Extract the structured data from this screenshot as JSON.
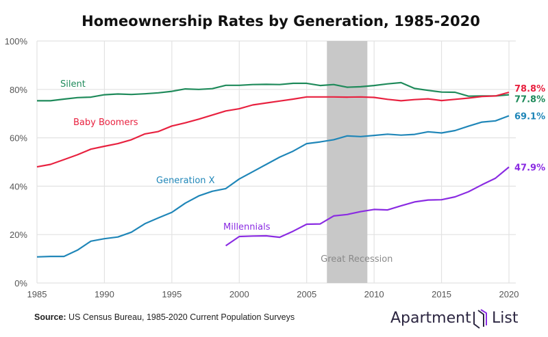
{
  "chart_data": {
    "type": "line",
    "title": "Homeownership Rates by Generation, 1985-2020",
    "xlabel": "",
    "ylabel": "",
    "xlim": [
      1985,
      2020
    ],
    "ylim": [
      0,
      100
    ],
    "x_ticks": [
      "1985",
      "1990",
      "1995",
      "2000",
      "2005",
      "2010",
      "2015",
      "2020"
    ],
    "y_ticks": [
      "0%",
      "20%",
      "40%",
      "60%",
      "80%",
      "100%"
    ],
    "grid": true,
    "shaded_region": {
      "label": "Great Recession",
      "start": 2006.5,
      "end": 2009.5,
      "color": "#c8c8c8"
    },
    "series": [
      {
        "name": "Silent",
        "color": "#1e8a5a",
        "end_label": "77.8%",
        "start_year": 1985,
        "values": [
          75.3,
          75.3,
          76.0,
          76.6,
          76.8,
          77.8,
          78.1,
          77.9,
          78.2,
          78.6,
          79.2,
          80.2,
          80.0,
          80.3,
          81.7,
          81.7,
          82.0,
          82.1,
          82.0,
          82.5,
          82.5,
          81.6,
          82.0,
          80.9,
          81.1,
          81.6,
          82.3,
          82.8,
          80.4,
          79.6,
          78.9,
          78.8,
          77.2,
          77.3,
          77.3,
          77.8
        ]
      },
      {
        "name": "Baby Boomers",
        "color": "#e8213f",
        "end_label": "78.8%",
        "start_year": 1985,
        "values": [
          48.0,
          49.0,
          51.0,
          53.0,
          55.3,
          56.5,
          57.6,
          59.2,
          61.6,
          62.6,
          64.9,
          66.2,
          67.7,
          69.4,
          71.1,
          72.0,
          73.6,
          74.4,
          75.2,
          76.0,
          76.9,
          76.9,
          76.9,
          76.8,
          76.9,
          76.7,
          75.9,
          75.3,
          75.8,
          76.1,
          75.4,
          75.9,
          76.4,
          77.1,
          77.3,
          78.8
        ]
      },
      {
        "name": "Generation X",
        "color": "#1f86b8",
        "end_label": "69.1%",
        "start_year": 1985,
        "values": [
          10.8,
          11.0,
          11.0,
          13.6,
          17.3,
          18.3,
          19.0,
          21.0,
          24.5,
          26.9,
          29.2,
          33.0,
          36.0,
          37.9,
          39.0,
          43.0,
          46.0,
          49.0,
          52.0,
          54.5,
          57.6,
          58.3,
          59.2,
          60.8,
          60.5,
          61.0,
          61.5,
          61.1,
          61.4,
          62.5,
          62.0,
          63.0,
          64.8,
          66.5,
          67.0,
          69.1
        ]
      },
      {
        "name": "Millennials",
        "color": "#8a2be2",
        "end_label": "47.9%",
        "start_year": 1999,
        "values": [
          15.4,
          19.2,
          19.4,
          19.5,
          18.9,
          21.4,
          24.3,
          24.4,
          27.7,
          28.3,
          29.5,
          30.4,
          30.2,
          31.9,
          33.5,
          34.3,
          34.4,
          35.6,
          37.7,
          40.6,
          43.3,
          47.9
        ]
      }
    ]
  },
  "footer": {
    "source_label": "Source:",
    "source_text": " US Census Bureau, 1985-2020 Current Population Surveys",
    "logo_text_1": "Apartment",
    "logo_text_2": "List"
  }
}
